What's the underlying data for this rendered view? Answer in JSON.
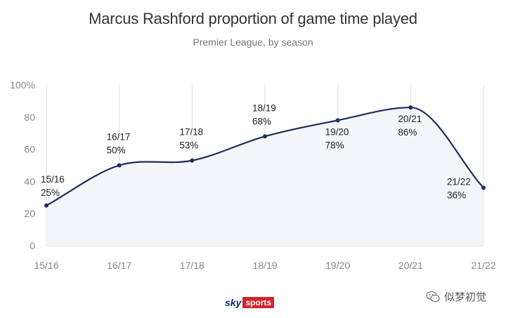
{
  "chart_data": {
    "type": "line",
    "title": "Marcus Rashford proportion of game time played",
    "subtitle": "Premier League, by season",
    "categories": [
      "15/16",
      "16/17",
      "17/18",
      "18/19",
      "19/20",
      "20/21",
      "21/22"
    ],
    "values": [
      25,
      50,
      53,
      68,
      78,
      86,
      36
    ],
    "point_labels": [
      [
        "15/16",
        "25%"
      ],
      [
        "16/17",
        "50%"
      ],
      [
        "17/18",
        "53%"
      ],
      [
        "18/19",
        "68%"
      ],
      [
        "19/20",
        "78%"
      ],
      [
        "20/21",
        "86%"
      ],
      [
        "21/22",
        "36%"
      ]
    ],
    "ylim": [
      0,
      100
    ],
    "yticks": [
      "0",
      "20",
      "40",
      "60",
      "80",
      "100%"
    ],
    "xlabel": "",
    "ylabel": "",
    "grid": "vertical",
    "colors": {
      "line": "#1c2e5e",
      "fill": "#f4f5f8",
      "grid": "#dddddd"
    }
  },
  "logo": {
    "sky": "sky",
    "sports": "sports"
  },
  "watermark": {
    "text": "似梦初觉",
    "icon": "wechat-icon"
  }
}
